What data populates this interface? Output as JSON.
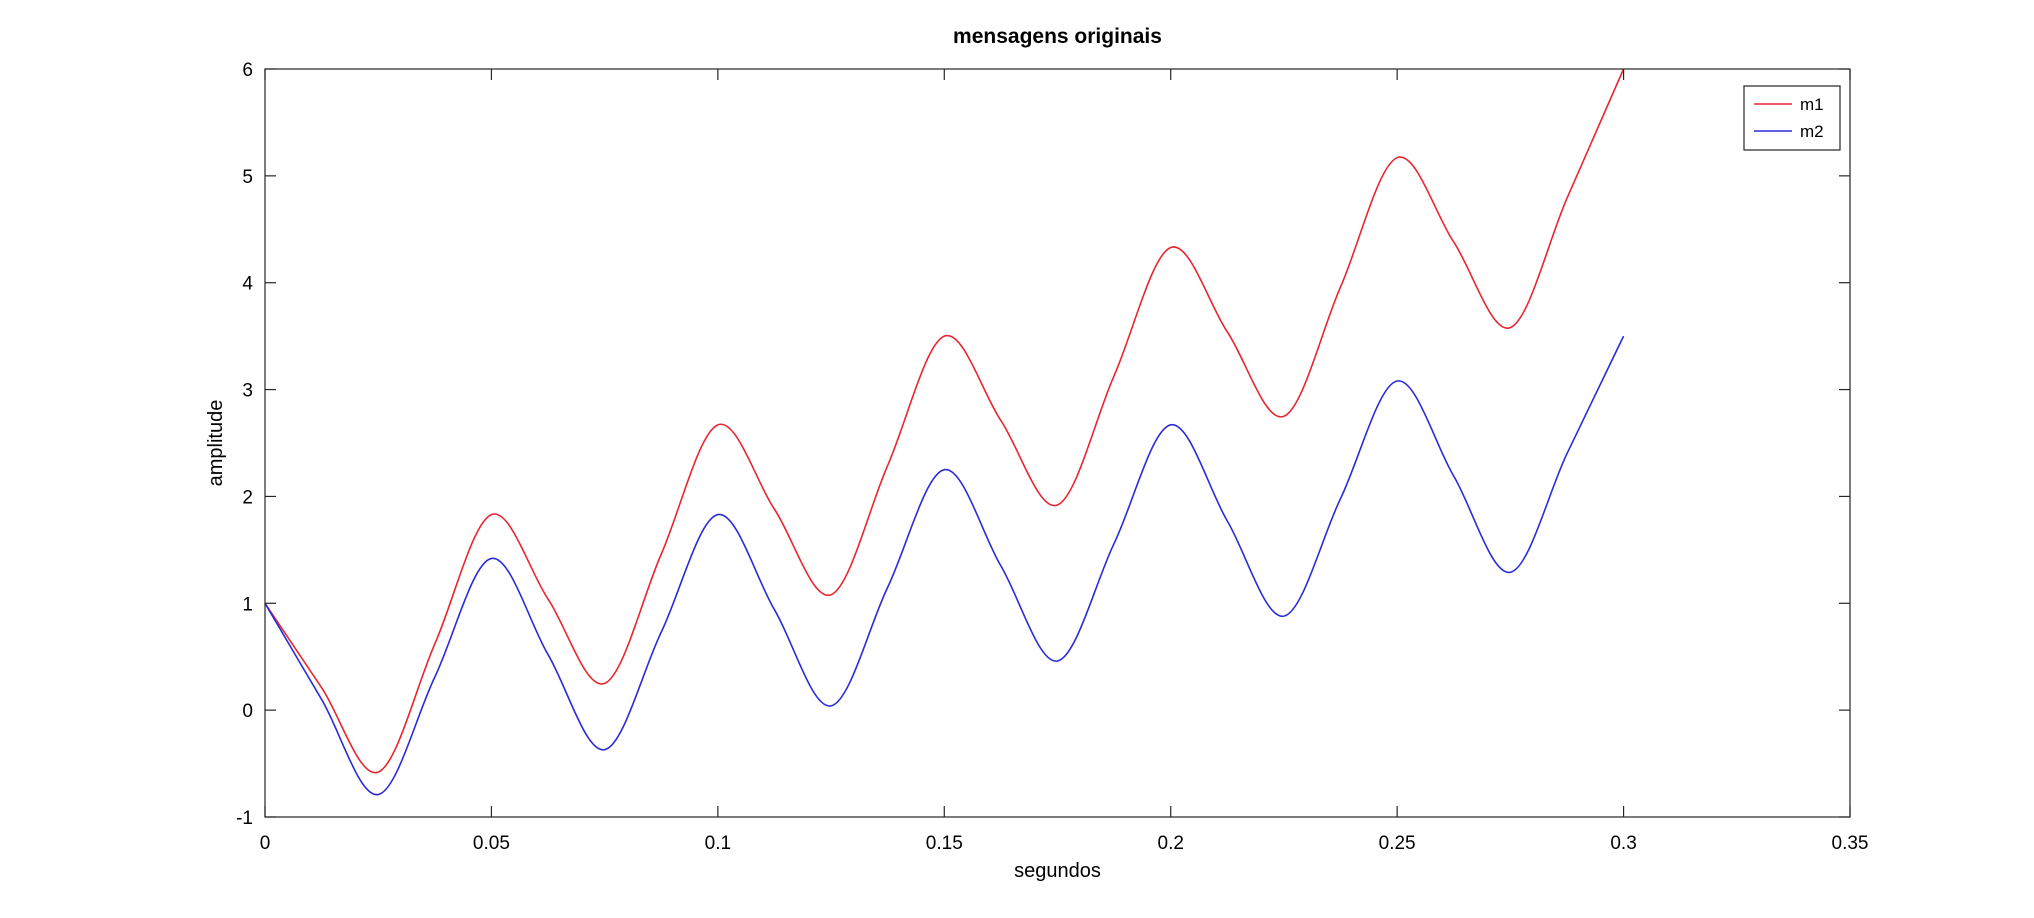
{
  "chart_data": {
    "type": "line",
    "title": "mensagens originais",
    "xlabel": "segundos",
    "ylabel": "amplitude",
    "xlim": [
      0,
      0.35
    ],
    "ylim": [
      -1,
      6
    ],
    "xticks": [
      0,
      0.05,
      0.1,
      0.15,
      0.2,
      0.25,
      0.3,
      0.35
    ],
    "xtick_labels": [
      "0",
      "0.05",
      "0.1",
      "0.15",
      "0.2",
      "0.25",
      "0.3",
      "0.35"
    ],
    "yticks": [
      -1,
      0,
      1,
      2,
      3,
      4,
      5,
      6
    ],
    "ytick_labels": [
      "-1",
      "0",
      "1",
      "2",
      "3",
      "4",
      "5",
      "6"
    ],
    "grid": false,
    "legend_position": "top-right",
    "series": [
      {
        "name": "m1",
        "color": "#e8262f",
        "x": [
          0,
          0.0125,
          0.025,
          0.0375,
          0.05,
          0.0625,
          0.075,
          0.0875,
          0.1,
          0.1125,
          0.125,
          0.1375,
          0.15,
          0.1625,
          0.175,
          0.1875,
          0.2,
          0.2125,
          0.225,
          0.2375,
          0.25,
          0.2625,
          0.275,
          0.2875,
          0.3
        ],
        "y": [
          1.0,
          0.21,
          -0.58,
          0.62,
          1.83,
          1.04,
          0.25,
          1.46,
          2.67,
          1.88,
          1.08,
          2.29,
          3.5,
          2.71,
          1.92,
          3.13,
          4.33,
          3.54,
          2.75,
          3.96,
          5.17,
          4.38,
          3.58,
          4.79,
          6.0
        ]
      },
      {
        "name": "m2",
        "color": "#2b2bd9",
        "x": [
          0,
          0.0125,
          0.025,
          0.0375,
          0.05,
          0.0625,
          0.075,
          0.0875,
          0.1,
          0.1125,
          0.125,
          0.1375,
          0.15,
          0.1625,
          0.175,
          0.1875,
          0.2,
          0.2125,
          0.225,
          0.2375,
          0.25,
          0.2625,
          0.275,
          0.2875,
          0.3
        ],
        "y": [
          1.0,
          0.1,
          -0.79,
          0.31,
          1.42,
          0.52,
          -0.37,
          0.73,
          1.83,
          0.94,
          0.04,
          1.15,
          2.25,
          1.35,
          0.46,
          1.56,
          2.67,
          1.77,
          0.88,
          1.98,
          3.08,
          2.19,
          1.29,
          2.4,
          3.5
        ]
      }
    ]
  }
}
